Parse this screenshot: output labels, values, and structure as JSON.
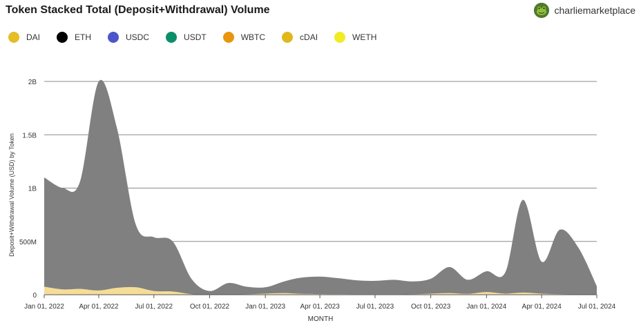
{
  "header": {
    "title": "Token Stacked Total (Deposit+Withdrawal) Volume",
    "author": "charliemarketplace",
    "avatar_icon": "frog-avatar-icon"
  },
  "chart_data": {
    "type": "area",
    "stacked": true,
    "xlabel": "MONTH",
    "ylabel": "Deposit+Withdrawal Volume (USD) by Token",
    "ylim": [
      0,
      2000000000
    ],
    "y_ticks": [
      0,
      500000000,
      1000000000,
      1500000000,
      2000000000
    ],
    "y_tick_labels": [
      "0",
      "500M",
      "1B",
      "1.5B",
      "2B"
    ],
    "x_ticks": [
      "2022-01-01",
      "2022-04-01",
      "2022-07-01",
      "2022-10-01",
      "2023-01-01",
      "2023-04-01",
      "2023-07-01",
      "2023-10-01",
      "2024-01-01",
      "2024-04-01",
      "2024-07-01"
    ],
    "x_tick_labels": [
      "Jan 01, 2022",
      "Apr 01, 2022",
      "Jul 01, 2022",
      "Oct 01, 2022",
      "Jan 01, 2023",
      "Apr 01, 2023",
      "Jul 01, 2023",
      "Oct 01, 2023",
      "Jan 01, 2024",
      "Apr 01, 2024",
      "Jul 01, 2024"
    ],
    "grid": true,
    "legend_placement": "top-left",
    "x": [
      "2022-01-01",
      "2022-02-01",
      "2022-03-01",
      "2022-04-01",
      "2022-05-01",
      "2022-06-01",
      "2022-07-01",
      "2022-08-01",
      "2022-09-01",
      "2022-10-01",
      "2022-11-01",
      "2022-12-01",
      "2023-01-01",
      "2023-02-01",
      "2023-03-01",
      "2023-04-01",
      "2023-05-01",
      "2023-06-01",
      "2023-07-01",
      "2023-08-01",
      "2023-09-01",
      "2023-10-01",
      "2023-11-01",
      "2023-12-01",
      "2024-01-01",
      "2024-02-01",
      "2024-03-01",
      "2024-04-01",
      "2024-05-01",
      "2024-06-01",
      "2024-07-01"
    ],
    "series": [
      {
        "name": "DAI",
        "color": "#e5bd27",
        "values": [
          75000000,
          50000000,
          55000000,
          40000000,
          65000000,
          70000000,
          35000000,
          30000000,
          5000000,
          2000000,
          3000000,
          4000000,
          10000000,
          15000000,
          8000000,
          6000000,
          5000000,
          4000000,
          4000000,
          4000000,
          4000000,
          10000000,
          15000000,
          8000000,
          25000000,
          10000000,
          20000000,
          10000000,
          5000000,
          3000000,
          2000000
        ]
      },
      {
        "name": "ETH",
        "color": "#000000",
        "values": [
          0,
          0,
          0,
          0,
          0,
          0,
          0,
          0,
          0,
          0,
          0,
          0,
          0,
          0,
          0,
          0,
          0,
          0,
          0,
          0,
          0,
          0,
          0,
          0,
          0,
          0,
          0,
          0,
          0,
          0,
          0
        ]
      },
      {
        "name": "USDC",
        "color": "#4c56c9",
        "values": [
          0,
          0,
          0,
          0,
          0,
          0,
          0,
          0,
          0,
          0,
          0,
          0,
          0,
          0,
          0,
          0,
          0,
          0,
          0,
          0,
          0,
          0,
          0,
          0,
          0,
          0,
          0,
          0,
          0,
          0,
          0
        ]
      },
      {
        "name": "USDT",
        "color": "#0b8f6a",
        "values": [
          0,
          0,
          0,
          0,
          0,
          0,
          0,
          0,
          0,
          0,
          0,
          0,
          0,
          0,
          0,
          0,
          0,
          0,
          0,
          0,
          0,
          0,
          0,
          0,
          0,
          0,
          0,
          0,
          0,
          0,
          0
        ]
      },
      {
        "name": "WBTC",
        "color": "#e8960e",
        "values": [
          0,
          0,
          0,
          0,
          0,
          0,
          0,
          0,
          0,
          0,
          0,
          0,
          0,
          0,
          0,
          0,
          0,
          0,
          0,
          0,
          0,
          0,
          0,
          0,
          0,
          0,
          0,
          0,
          0,
          0,
          0
        ]
      },
      {
        "name": "cDAI",
        "color": "#e0b81c",
        "values": [
          1025000000,
          950000000,
          1005000000,
          1960000000,
          1500000000,
          590000000,
          505000000,
          470000000,
          145000000,
          33000000,
          107000000,
          71000000,
          60000000,
          110000000,
          152000000,
          164000000,
          150000000,
          131000000,
          126000000,
          136000000,
          121000000,
          140000000,
          245000000,
          132000000,
          195000000,
          200000000,
          870000000,
          300000000,
          605000000,
          435000000,
          78000000
        ]
      },
      {
        "name": "WETH",
        "color": "#f0ec24",
        "values": [
          0,
          0,
          0,
          0,
          0,
          0,
          0,
          0,
          0,
          0,
          0,
          0,
          0,
          0,
          0,
          0,
          0,
          0,
          0,
          0,
          0,
          0,
          0,
          0,
          0,
          0,
          0,
          0,
          0,
          0,
          0
        ]
      }
    ],
    "area_fill": {
      "bottom": "#f5dd97",
      "top": "#808080"
    }
  }
}
